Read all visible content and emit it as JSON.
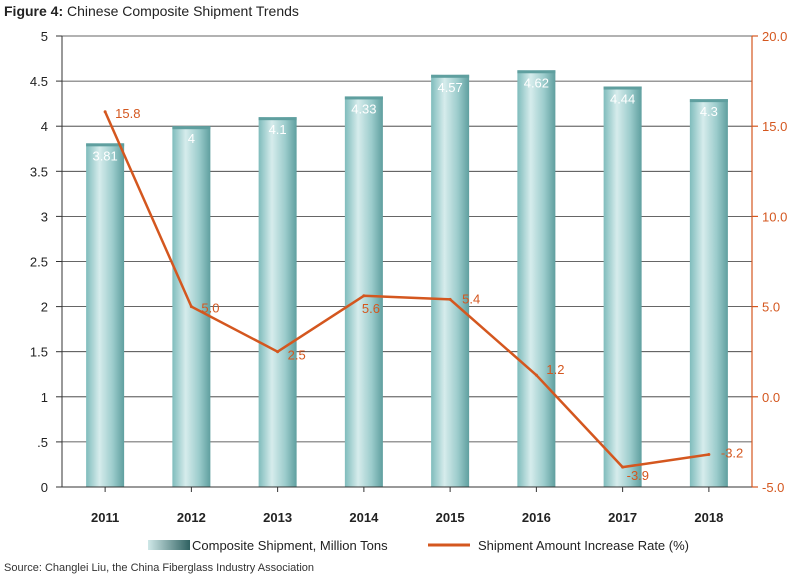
{
  "figure": {
    "title_prefix": "Figure 4:",
    "title_text": "Chinese Composite Shipment Trends",
    "source": "Source: Changlei Liu, the China Fiberglass Industry Association"
  },
  "colors": {
    "bar_light": "#cfe8e8",
    "bar_mid": "#8cc6c6",
    "bar_dark": "#5fa3a3",
    "line": "#d4571f",
    "grid": "#333333"
  },
  "chart_data": {
    "type": "bar+line",
    "categories": [
      "2011",
      "2012",
      "2013",
      "2014",
      "2015",
      "2016",
      "2017",
      "2018"
    ],
    "series": [
      {
        "name": "Composite Shipment, Million Tons",
        "type": "bar",
        "axis": "left",
        "values": [
          3.81,
          4,
          4.1,
          4.33,
          4.57,
          4.62,
          4.44,
          4.3
        ],
        "labels": [
          "3.81",
          "4",
          "4.1",
          "4.33",
          "4.57",
          "4.62",
          "4.44",
          "4.3"
        ]
      },
      {
        "name": "Shipment Amount Increase Rate (%)",
        "type": "line",
        "axis": "right",
        "values": [
          15.8,
          5.0,
          2.5,
          5.6,
          5.4,
          1.2,
          -3.9,
          -3.2
        ],
        "labels": [
          "15.8",
          "5.0",
          "2.5",
          "5.6",
          "5.4",
          "1.2",
          "-3.9",
          "-3.2"
        ]
      }
    ],
    "left_axis": {
      "ylim": [
        0,
        5
      ],
      "ticks": [
        0,
        0.5,
        1,
        1.5,
        2,
        2.5,
        3,
        3.5,
        4,
        4.5,
        5
      ],
      "tick_labels": [
        "0",
        ".5",
        "1",
        "1.5",
        "2",
        "2.5",
        "3",
        "3.5",
        "4",
        "4.5",
        "5"
      ]
    },
    "right_axis": {
      "ylim": [
        -5,
        20
      ],
      "ticks": [
        -5,
        0,
        5,
        10,
        15,
        20
      ],
      "tick_labels": [
        "-5.0",
        "0.0",
        "5.0",
        "10.0",
        "15.0",
        "20.0"
      ]
    },
    "grid": true,
    "legend": "bottom"
  }
}
